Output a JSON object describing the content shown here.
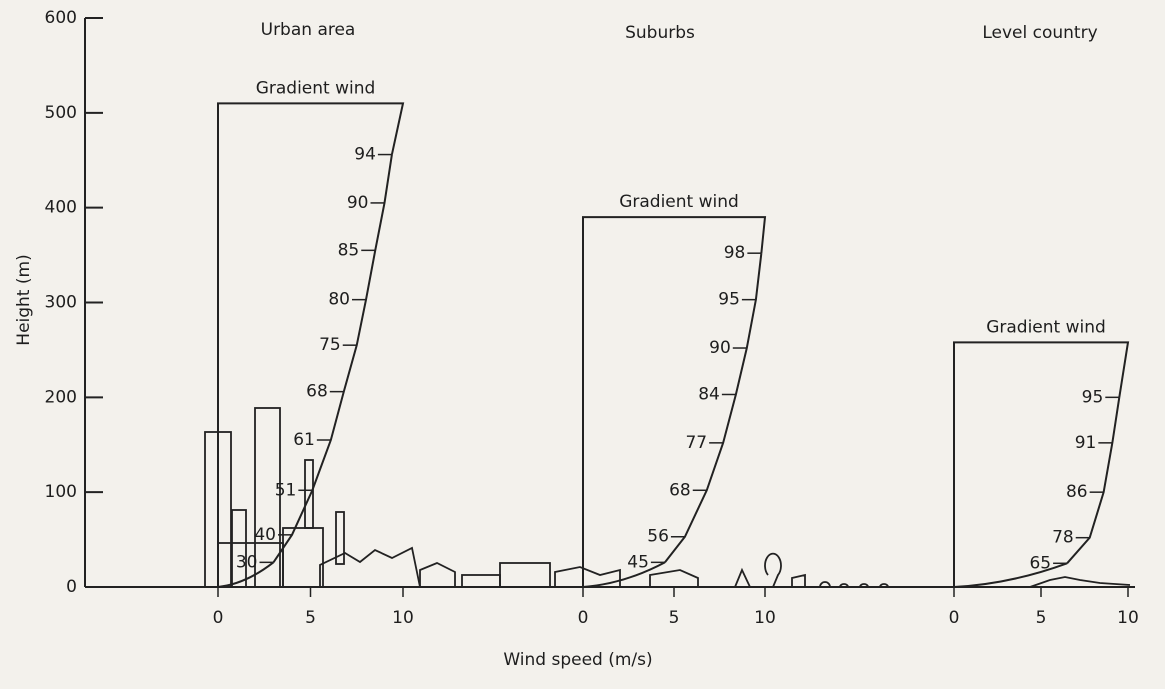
{
  "chart_data": {
    "type": "line",
    "ylabel": "Height (m)",
    "xlabel": "Wind speed (m/s)",
    "ylim": [
      0,
      600
    ],
    "yticks": [
      0,
      100,
      200,
      300,
      400,
      500,
      600
    ],
    "color": "#222222",
    "panels": [
      {
        "title": "Urban area",
        "gradient_label": "Gradient wind",
        "gradient_height": 510,
        "xlim": [
          0,
          10
        ],
        "xticks": [
          0,
          5,
          10
        ],
        "percents": [
          94,
          90,
          85,
          80,
          75,
          68,
          61,
          51,
          40,
          30
        ],
        "heights": [
          456,
          405,
          355,
          303,
          255,
          206,
          155,
          102,
          55,
          26
        ]
      },
      {
        "title": "Suburbs",
        "gradient_label": "Gradient wind",
        "gradient_height": 390,
        "xlim": [
          0,
          10
        ],
        "xticks": [
          0,
          5,
          10
        ],
        "percents": [
          98,
          95,
          90,
          84,
          77,
          68,
          56,
          45
        ],
        "heights": [
          352,
          303,
          252,
          203,
          152,
          102,
          53,
          26
        ]
      },
      {
        "title": "Level country",
        "gradient_label": "Gradient wind",
        "gradient_height": 258,
        "xlim": [
          0,
          10
        ],
        "xticks": [
          0,
          5,
          10
        ],
        "percents": [
          95,
          91,
          86,
          78,
          65
        ],
        "heights": [
          200,
          152,
          100,
          52,
          25
        ]
      }
    ]
  }
}
